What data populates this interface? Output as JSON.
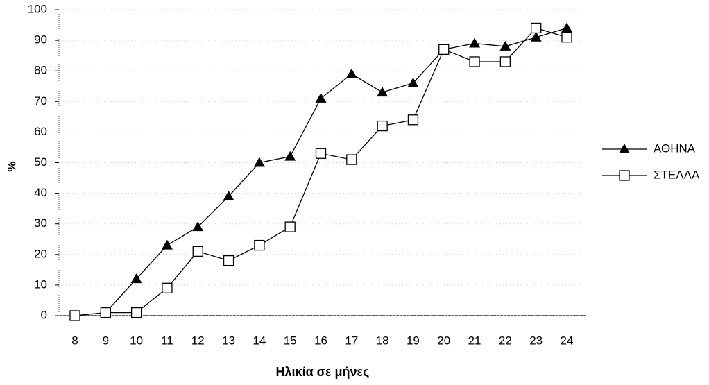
{
  "chart_data": {
    "type": "line",
    "x_label": "Ηλικία σε μήνες",
    "y_label": "%",
    "categories": [
      "8",
      "9",
      "10",
      "11",
      "12",
      "13",
      "14",
      "15",
      "16",
      "17",
      "18",
      "19",
      "20",
      "21",
      "22",
      "23",
      "24"
    ],
    "series": [
      {
        "name": "ΑΘΗΝΑ",
        "color": "#000000",
        "marker": "triangle",
        "values": [
          0,
          1,
          12,
          23,
          29,
          39,
          50,
          52,
          71,
          79,
          73,
          76,
          87,
          89,
          88,
          91,
          94
        ]
      },
      {
        "name": "ΣΤΕΛΛΑ",
        "color": "#000000",
        "marker": "square",
        "values": [
          0,
          1,
          1,
          9,
          21,
          18,
          23,
          29,
          53,
          51,
          62,
          64,
          87,
          83,
          83,
          94,
          91
        ]
      }
    ],
    "ylim": [
      0,
      100
    ],
    "yticks": [
      0,
      10,
      20,
      30,
      40,
      50,
      60,
      70,
      80,
      90,
      100
    ],
    "grid": true,
    "legend": "right"
  }
}
